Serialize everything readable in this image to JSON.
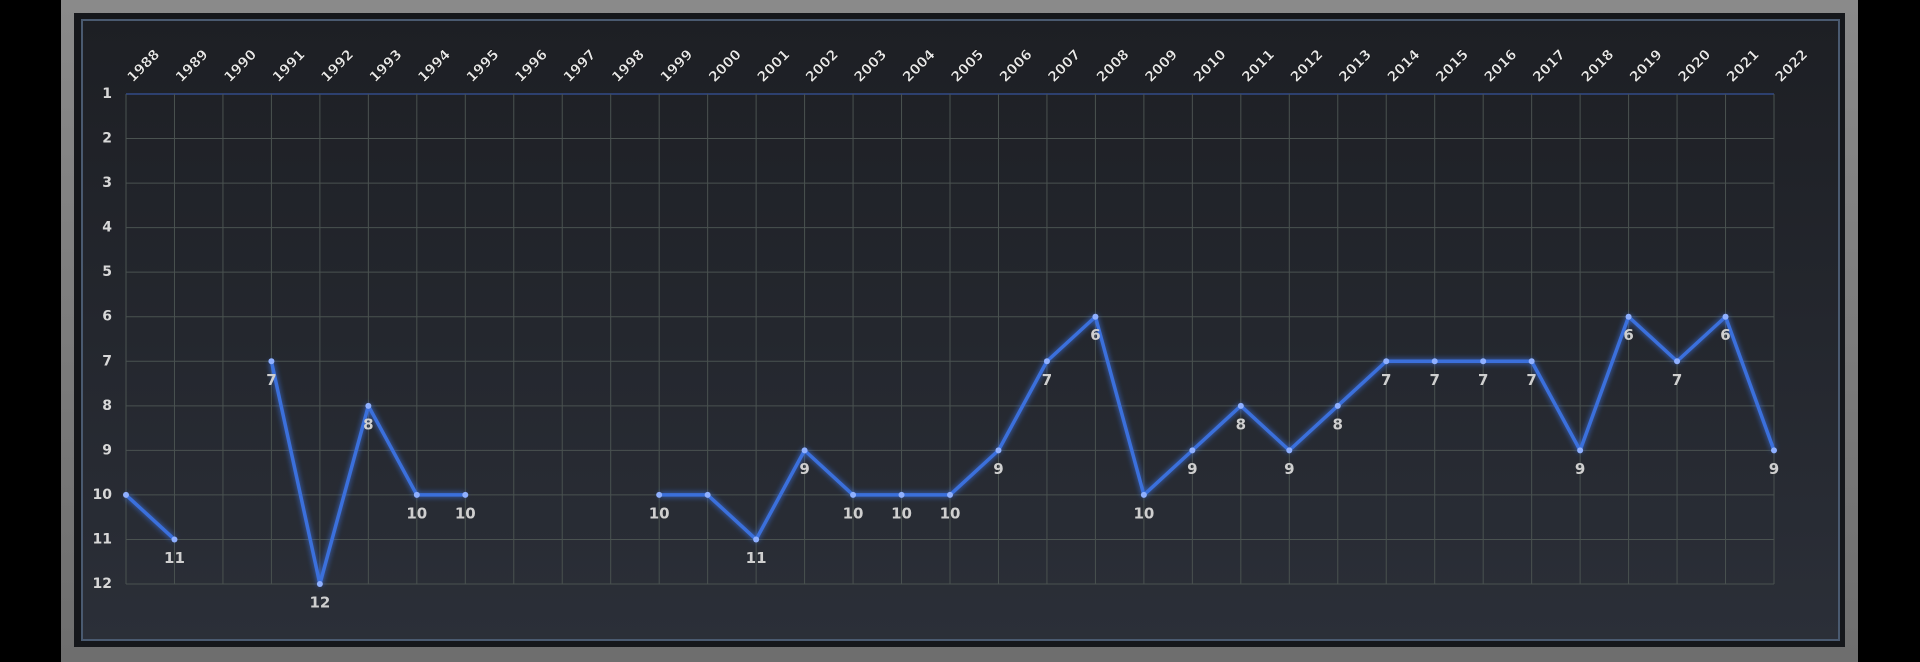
{
  "chart_data": {
    "type": "line",
    "categories": [
      "1988",
      "1989",
      "1990",
      "1991",
      "1992",
      "1993",
      "1994",
      "1995",
      "1996",
      "1997",
      "1998",
      "1999",
      "2000",
      "2001",
      "2002",
      "2003",
      "2004",
      "2005",
      "2006",
      "2007",
      "2008",
      "2009",
      "2010",
      "2011",
      "2012",
      "2013",
      "2014",
      "2015",
      "2016",
      "2017",
      "2018",
      "2019",
      "2020",
      "2021",
      "2022"
    ],
    "series": [
      {
        "color": "#3b6fdc",
        "values": [
          10,
          11,
          null,
          7,
          12,
          8,
          10,
          10,
          null,
          null,
          null,
          10,
          10,
          11,
          9,
          10,
          10,
          10,
          9,
          7,
          6,
          10,
          9,
          8,
          9,
          8,
          7,
          7,
          7,
          7,
          9,
          6,
          7,
          6,
          9
        ],
        "value_labels": [
          null,
          "11",
          null,
          "7",
          "12",
          "8",
          "10",
          "10",
          null,
          null,
          null,
          "10",
          null,
          "11",
          "9",
          "10",
          "10",
          "10",
          "9",
          "7",
          "6",
          "10",
          "9",
          "8",
          "9",
          "8",
          "7",
          "7",
          "7",
          "7",
          "9",
          "6",
          "7",
          "6",
          "9"
        ]
      }
    ],
    "ylim": [
      1,
      12
    ],
    "y_inverted": true,
    "yticks": [
      1,
      2,
      3,
      4,
      5,
      6,
      7,
      8,
      9,
      10,
      11,
      12
    ],
    "grid": true
  }
}
